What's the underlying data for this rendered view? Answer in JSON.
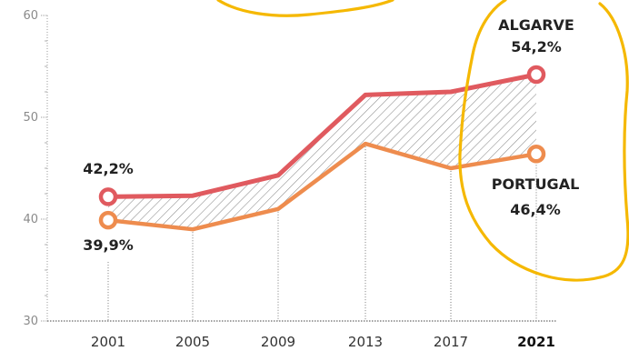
{
  "chart_data": {
    "type": "line",
    "x": [
      "2001",
      "2005",
      "2009",
      "2013",
      "2017",
      "2021"
    ],
    "highlight_x": "2021",
    "ylim": [
      30,
      60
    ],
    "yticks": [
      "30",
      "40",
      "50",
      "60"
    ],
    "grid": "dotted",
    "series": [
      {
        "name": "ALGARVE",
        "color": "#e05a5f",
        "values": [
          42.2,
          42.3,
          44.3,
          52.2,
          52.5,
          54.2
        ],
        "start_label": "42,2%",
        "end_label": "54,2%"
      },
      {
        "name": "PORTUGAL",
        "color": "#ee8c4e",
        "values": [
          39.9,
          39.0,
          41.0,
          47.4,
          45.0,
          46.4
        ],
        "start_label": "39,9%",
        "end_label": "46,4%"
      }
    ],
    "annotation_color": "#f5b800"
  }
}
